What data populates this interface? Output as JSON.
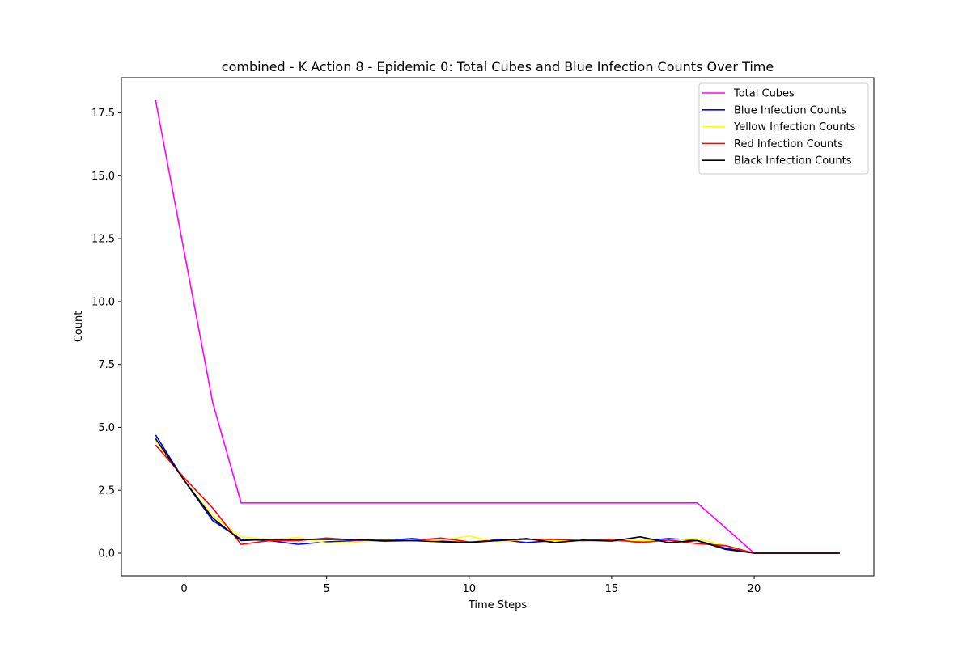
{
  "chart_data": {
    "type": "line",
    "title": "combined - K Action 8 - Epidemic 0: Total Cubes and Blue Infection Counts Over Time",
    "xlabel": "Time Steps",
    "ylabel": "Count",
    "xlim": [
      -2.2,
      24.2
    ],
    "ylim": [
      -0.9,
      18.9
    ],
    "xticks": [
      0,
      5,
      10,
      15,
      20
    ],
    "xtick_labels": [
      "0",
      "5",
      "10",
      "15",
      "20"
    ],
    "yticks": [
      0,
      2.5,
      5,
      7.5,
      10,
      12.5,
      15,
      17.5
    ],
    "ytick_labels": [
      "0.0",
      "2.5",
      "5.0",
      "7.5",
      "10.0",
      "12.5",
      "15.0",
      "17.5"
    ],
    "grid": false,
    "legend_position": "top-right",
    "x": [
      -1,
      0,
      1,
      2,
      3,
      4,
      5,
      6,
      7,
      8,
      9,
      10,
      11,
      12,
      13,
      14,
      15,
      16,
      17,
      18,
      19,
      20,
      21,
      22,
      23
    ],
    "series": [
      {
        "name": "Total Cubes",
        "color": "#ff00ff",
        "values": [
          18,
          12,
          6,
          2,
          2,
          2,
          2,
          2,
          2,
          2,
          2,
          2,
          2,
          2,
          2,
          2,
          2,
          2,
          2,
          2,
          1,
          0,
          0,
          0,
          0
        ]
      },
      {
        "name": "Blue Infection Counts",
        "color": "#0000ff",
        "values": [
          4.7,
          2.9,
          1.3,
          0.55,
          0.5,
          0.35,
          0.45,
          0.5,
          0.5,
          0.58,
          0.48,
          0.42,
          0.55,
          0.42,
          0.5,
          0.5,
          0.5,
          0.48,
          0.58,
          0.5,
          0.2,
          0,
          0,
          0,
          0
        ]
      },
      {
        "name": "Yellow Infection Counts",
        "color": "#ffff00",
        "values": [
          4.5,
          2.9,
          1.5,
          0.65,
          0.55,
          0.62,
          0.4,
          0.45,
          0.5,
          0.48,
          0.52,
          0.68,
          0.45,
          0.55,
          0.5,
          0.5,
          0.5,
          0.5,
          0.5,
          0.58,
          0.3,
          0,
          0,
          0,
          0
        ]
      },
      {
        "name": "Red Infection Counts",
        "color": "#ff0000",
        "values": [
          4.3,
          3.0,
          1.8,
          0.35,
          0.5,
          0.5,
          0.6,
          0.52,
          0.52,
          0.5,
          0.6,
          0.45,
          0.5,
          0.55,
          0.55,
          0.5,
          0.55,
          0.42,
          0.52,
          0.38,
          0.3,
          0,
          0,
          0,
          0
        ]
      },
      {
        "name": "Black Infection Counts",
        "color": "#000000",
        "values": [
          4.55,
          2.9,
          1.4,
          0.5,
          0.55,
          0.55,
          0.55,
          0.55,
          0.48,
          0.5,
          0.45,
          0.42,
          0.5,
          0.58,
          0.42,
          0.52,
          0.48,
          0.65,
          0.42,
          0.5,
          0.15,
          0,
          0,
          0,
          0
        ]
      }
    ]
  }
}
